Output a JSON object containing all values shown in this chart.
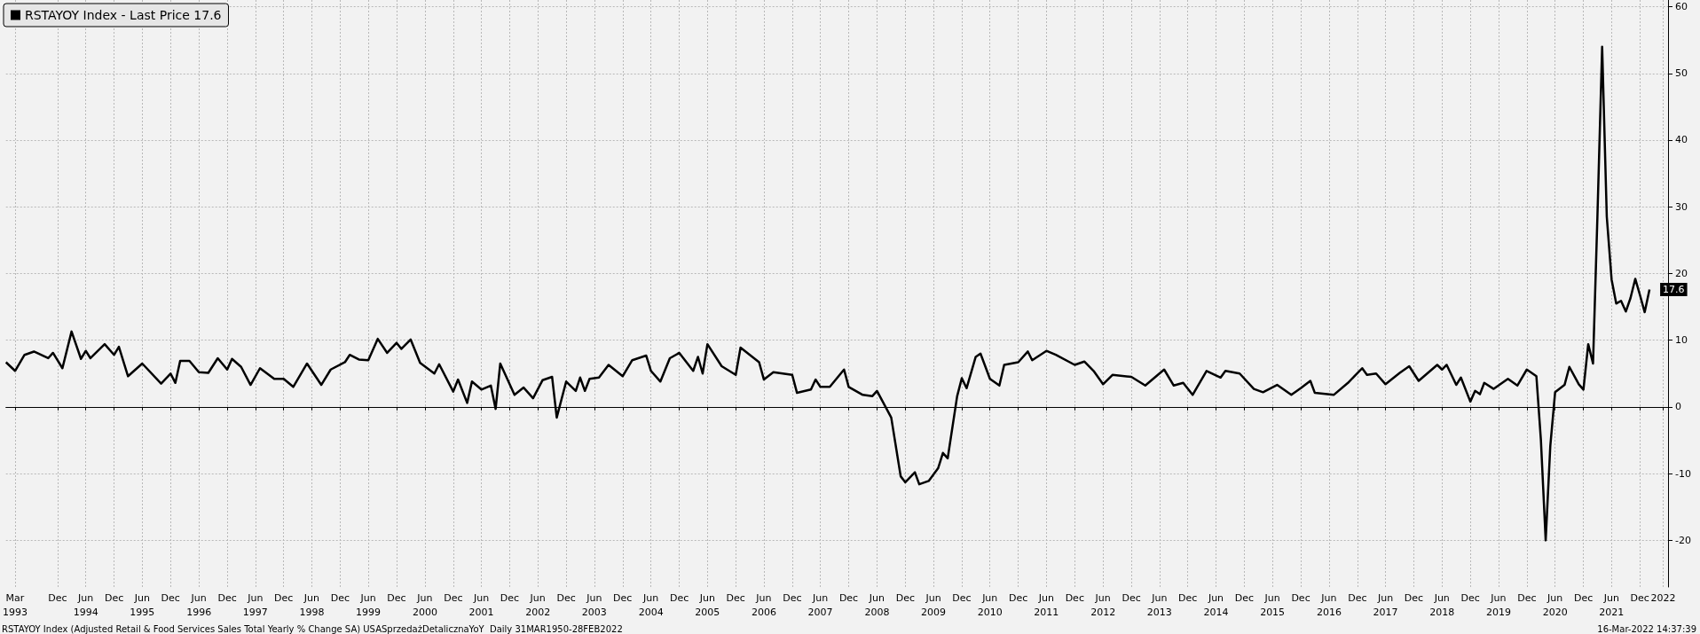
{
  "chart_data": {
    "type": "line",
    "x": [
      "1993-01",
      "1993-03",
      "1993-05",
      "1993-07",
      "1993-10",
      "1993-11",
      "1994-01",
      "1994-03",
      "1994-05",
      "1994-06",
      "1994-07",
      "1994-10",
      "1994-12",
      "1995-01",
      "1995-03",
      "1995-06",
      "1995-10",
      "1995-12",
      "1996-01",
      "1996-02",
      "1996-04",
      "1996-06",
      "1996-08",
      "1996-10",
      "1996-12",
      "1997-01",
      "1997-03",
      "1997-05",
      "1997-07",
      "1997-10",
      "1997-12",
      "1998-02",
      "1998-05",
      "1998-08",
      "1998-10",
      "1999-01",
      "1999-02",
      "1999-04",
      "1999-06",
      "1999-08",
      "1999-10",
      "1999-12",
      "2000-01",
      "2000-03",
      "2000-05",
      "2000-08",
      "2000-09",
      "2000-12",
      "2001-01",
      "2001-03",
      "2001-04",
      "2001-06",
      "2001-08",
      "2001-09",
      "2001-10",
      "2002-01",
      "2002-03",
      "2002-05",
      "2002-07",
      "2002-09",
      "2002-10",
      "2002-12",
      "2003-02",
      "2003-03",
      "2003-04",
      "2003-05",
      "2003-07",
      "2003-09",
      "2003-12",
      "2004-02",
      "2004-05",
      "2004-06",
      "2004-08",
      "2004-10",
      "2004-12",
      "2005-03",
      "2005-04",
      "2005-05",
      "2005-06",
      "2005-09",
      "2005-12",
      "2006-01",
      "2006-05",
      "2006-06",
      "2006-08",
      "2006-12",
      "2007-01",
      "2007-04",
      "2007-05",
      "2007-06",
      "2007-08",
      "2007-11",
      "2007-12",
      "2008-03",
      "2008-05",
      "2008-06",
      "2008-09",
      "2008-11",
      "2008-12",
      "2009-02",
      "2009-03",
      "2009-05",
      "2009-07",
      "2009-08",
      "2009-09",
      "2009-11",
      "2009-12",
      "2010-01",
      "2010-03",
      "2010-04",
      "2010-06",
      "2010-08",
      "2010-09",
      "2010-12",
      "2011-02",
      "2011-03",
      "2011-06",
      "2011-08",
      "2011-12",
      "2012-02",
      "2012-04",
      "2012-06",
      "2012-08",
      "2012-12",
      "2013-03",
      "2013-07",
      "2013-09",
      "2013-11",
      "2014-01",
      "2014-04",
      "2014-07",
      "2014-08",
      "2014-11",
      "2015-02",
      "2015-04",
      "2015-07",
      "2015-10",
      "2015-12",
      "2016-02",
      "2016-03",
      "2016-07",
      "2016-10",
      "2017-01",
      "2017-02",
      "2017-04",
      "2017-06",
      "2017-09",
      "2017-11",
      "2018-01",
      "2018-05",
      "2018-06",
      "2018-07",
      "2018-09",
      "2018-10",
      "2018-12",
      "2019-01",
      "2019-02",
      "2019-03",
      "2019-05",
      "2019-08",
      "2019-10",
      "2019-12",
      "2020-02",
      "2020-03",
      "2020-04",
      "2020-05",
      "2020-06",
      "2020-08",
      "2020-09",
      "2020-11",
      "2020-12",
      "2021-01",
      "2021-02",
      "2021-03",
      "2021-04",
      "2021-05",
      "2021-06",
      "2021-07",
      "2021-08",
      "2021-09",
      "2021-10",
      "2021-11",
      "2021-12",
      "2022-01",
      "2022-02"
    ],
    "series": [
      {
        "name": "RSTAYOY Index - Last Price 17.6",
        "color": "#000000",
        "values": [
          6.7,
          5.4,
          7.8,
          8.3,
          7.3,
          8.1,
          5.8,
          11.3,
          7.2,
          8.4,
          7.3,
          9.4,
          7.8,
          9.0,
          4.6,
          6.5,
          3.5,
          5.0,
          3.6,
          6.9,
          6.9,
          5.2,
          5.1,
          7.3,
          5.6,
          7.2,
          6.0,
          3.3,
          5.8,
          4.2,
          4.2,
          3.0,
          6.5,
          3.3,
          5.6,
          6.7,
          7.8,
          7.1,
          7.0,
          10.2,
          8.1,
          9.6,
          8.7,
          10.1,
          6.6,
          5.0,
          6.4,
          2.3,
          4.1,
          0.6,
          3.8,
          2.6,
          3.2,
          -0.3,
          6.5,
          1.8,
          2.9,
          1.3,
          4.0,
          4.5,
          -1.6,
          3.8,
          2.4,
          4.4,
          2.4,
          4.2,
          4.4,
          6.3,
          4.6,
          7.0,
          7.7,
          5.4,
          3.8,
          7.3,
          8.1,
          5.4,
          7.5,
          5.0,
          9.4,
          6.1,
          4.8,
          8.9,
          6.7,
          4.1,
          5.2,
          4.8,
          2.1,
          2.6,
          4.1,
          3.0,
          3.0,
          5.6,
          3.0,
          1.8,
          1.6,
          2.4,
          -1.6,
          -10.4,
          -11.3,
          -9.8,
          -11.6,
          -11.1,
          -9.2,
          -6.9,
          -7.7,
          1.6,
          4.3,
          2.8,
          7.5,
          8.0,
          4.2,
          3.2,
          6.3,
          6.7,
          8.3,
          7.0,
          8.4,
          7.8,
          6.3,
          6.8,
          5.4,
          3.4,
          4.8,
          4.5,
          3.2,
          5.6,
          3.2,
          3.6,
          1.8,
          5.4,
          4.4,
          5.4,
          5.0,
          2.7,
          2.2,
          3.3,
          1.8,
          2.8,
          3.9,
          2.1,
          1.8,
          3.6,
          5.8,
          4.8,
          5.0,
          3.4,
          5.1,
          6.1,
          3.9,
          6.3,
          5.6,
          6.3,
          3.3,
          4.4,
          0.8,
          2.4,
          1.9,
          3.6,
          2.7,
          4.2,
          3.2,
          5.6,
          4.6,
          -4.9,
          -20.0,
          -5.8,
          2.2,
          3.3,
          6.0,
          3.4,
          2.6,
          9.4,
          6.5,
          28.2,
          54.0,
          28.5,
          19.1,
          15.5,
          15.9,
          14.3,
          16.3,
          19.2,
          16.8,
          14.2,
          17.6
        ],
        "value_labels": [
          null,
          null,
          null,
          null,
          null,
          null,
          null,
          null,
          null,
          null,
          null,
          null,
          null,
          null,
          null,
          null,
          null,
          null,
          null,
          null,
          null,
          null,
          null,
          null,
          null,
          null,
          null,
          null,
          null,
          null,
          null,
          null,
          null,
          null,
          null,
          null,
          null,
          null,
          null,
          null,
          null,
          null,
          null,
          null,
          null,
          null,
          null,
          null,
          null,
          null,
          null,
          null,
          null,
          null,
          null,
          null,
          null,
          null,
          null,
          null,
          null,
          null,
          null,
          null,
          null,
          null,
          null,
          null,
          null,
          null,
          null,
          null,
          null,
          null,
          null,
          null,
          null,
          null,
          null,
          null,
          null,
          null,
          null,
          null,
          null,
          null,
          null,
          null,
          null,
          null,
          null,
          null,
          null,
          null,
          null,
          null,
          null,
          null,
          null,
          null,
          null,
          null,
          null,
          null,
          null,
          null,
          null,
          null,
          null,
          null,
          null,
          null,
          null,
          null,
          null,
          null,
          null,
          null,
          null,
          null,
          null,
          null,
          null,
          null,
          null,
          null,
          null,
          null,
          null,
          null,
          null,
          null,
          null,
          null,
          null,
          null,
          null,
          null,
          null,
          null,
          null,
          null,
          null,
          null,
          null,
          null,
          null,
          null,
          null,
          null,
          null,
          null,
          null,
          null,
          null,
          null,
          null,
          null,
          null,
          null,
          null,
          null,
          null,
          null,
          null,
          null,
          null,
          null,
          null,
          null,
          null,
          null,
          null,
          null,
          null,
          null,
          null,
          null,
          null,
          null,
          null,
          null,
          null,
          null,
          "17.6"
        ]
      }
    ],
    "xlim": [
      "1993-01",
      "2022-06"
    ],
    "xticks": [
      {
        "value": "1993-03",
        "label": "Mar\n1993"
      },
      {
        "value": "1993-12",
        "label": "Dec"
      },
      {
        "value": "1994-06",
        "label": "Jun\n1994"
      },
      {
        "value": "1994-12",
        "label": "Dec"
      },
      {
        "value": "1995-06",
        "label": "Jun\n1995"
      },
      {
        "value": "1995-12",
        "label": "Dec"
      },
      {
        "value": "1996-06",
        "label": "Jun\n1996"
      },
      {
        "value": "1996-12",
        "label": "Dec"
      },
      {
        "value": "1997-06",
        "label": "Jun\n1997"
      },
      {
        "value": "1997-12",
        "label": "Dec"
      },
      {
        "value": "1998-06",
        "label": "Jun\n1998"
      },
      {
        "value": "1998-12",
        "label": "Dec"
      },
      {
        "value": "1999-06",
        "label": "Jun\n1999"
      },
      {
        "value": "1999-12",
        "label": "Dec"
      },
      {
        "value": "2000-06",
        "label": "Jun\n2000"
      },
      {
        "value": "2000-12",
        "label": "Dec"
      },
      {
        "value": "2001-06",
        "label": "Jun\n2001"
      },
      {
        "value": "2001-12",
        "label": "Dec"
      },
      {
        "value": "2002-06",
        "label": "Jun\n2002"
      },
      {
        "value": "2002-12",
        "label": "Dec"
      },
      {
        "value": "2003-06",
        "label": "Jun\n2003"
      },
      {
        "value": "2003-12",
        "label": "Dec"
      },
      {
        "value": "2004-06",
        "label": "Jun\n2004"
      },
      {
        "value": "2004-12",
        "label": "Dec"
      },
      {
        "value": "2005-06",
        "label": "Jun\n2005"
      },
      {
        "value": "2005-12",
        "label": "Dec"
      },
      {
        "value": "2006-06",
        "label": "Jun\n2006"
      },
      {
        "value": "2006-12",
        "label": "Dec"
      },
      {
        "value": "2007-06",
        "label": "Jun\n2007"
      },
      {
        "value": "2007-12",
        "label": "Dec"
      },
      {
        "value": "2008-06",
        "label": "Jun\n2008"
      },
      {
        "value": "2008-12",
        "label": "Dec"
      },
      {
        "value": "2009-06",
        "label": "Jun\n2009"
      },
      {
        "value": "2009-12",
        "label": "Dec"
      },
      {
        "value": "2010-06",
        "label": "Jun\n2010"
      },
      {
        "value": "2010-12",
        "label": "Dec"
      },
      {
        "value": "2011-06",
        "label": "Jun\n2011"
      },
      {
        "value": "2011-12",
        "label": "Dec"
      },
      {
        "value": "2012-06",
        "label": "Jun\n2012"
      },
      {
        "value": "2012-12",
        "label": "Dec"
      },
      {
        "value": "2013-06",
        "label": "Jun\n2013"
      },
      {
        "value": "2013-12",
        "label": "Dec"
      },
      {
        "value": "2014-06",
        "label": "Jun\n2014"
      },
      {
        "value": "2014-12",
        "label": "Dec"
      },
      {
        "value": "2015-06",
        "label": "Jun\n2015"
      },
      {
        "value": "2015-12",
        "label": "Dec"
      },
      {
        "value": "2016-06",
        "label": "Jun\n2016"
      },
      {
        "value": "2016-12",
        "label": "Dec"
      },
      {
        "value": "2017-06",
        "label": "Jun\n2017"
      },
      {
        "value": "2017-12",
        "label": "Dec"
      },
      {
        "value": "2018-06",
        "label": "Jun\n2018"
      },
      {
        "value": "2018-12",
        "label": "Dec"
      },
      {
        "value": "2019-06",
        "label": "Jun\n2019"
      },
      {
        "value": "2019-12",
        "label": "Dec"
      },
      {
        "value": "2020-06",
        "label": "Jun\n2020"
      },
      {
        "value": "2020-12",
        "label": "Dec"
      },
      {
        "value": "2021-06",
        "label": "Jun\n2021"
      },
      {
        "value": "2021-12",
        "label": "Dec"
      },
      {
        "value": "2022-05",
        "label": "2022"
      }
    ],
    "ylim": [
      -27,
      61
    ],
    "yticks": [
      -20,
      -10,
      0,
      10,
      20,
      30,
      40,
      50,
      60
    ],
    "grid": true,
    "legend": "top left",
    "marker": "none",
    "line_style": "solid",
    "annotations": [
      "RSTAYOY Index (Adjusted Retail & Food Services Sales Total Yearly % Change SA) USASprzedażDetalicznaYoY  Daily 31MAR1950-28FEB2022",
      "16-Mar-2022 14:37:39"
    ]
  }
}
